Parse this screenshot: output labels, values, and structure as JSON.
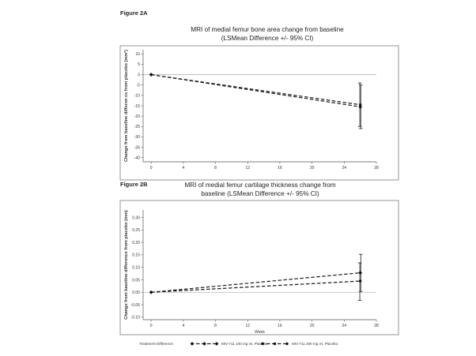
{
  "figure_a": {
    "label": "Figure 2A"
  },
  "figure_b": {
    "label": "Figure 2B"
  },
  "legend": {
    "title": "Treatment Difference",
    "items": [
      {
        "label": "MIV-711 100 mg vs. Placebo",
        "marker": "diamond"
      },
      {
        "label": "MIV-711 200 mg vs. Placebo",
        "marker": "circle"
      }
    ]
  },
  "chart_data": [
    {
      "type": "line",
      "title_lines": [
        "MRI of medial femur bone area change from baseline",
        "(LSMean Difference +/- 95% CI)"
      ],
      "xlabel": "",
      "ylabel": "Change from baseline differen ce from placebo (mm²)",
      "xlim": [
        -1,
        28
      ],
      "ylim": [
        -42,
        12
      ],
      "xticks": [
        0,
        4,
        8,
        12,
        16,
        20,
        24,
        28
      ],
      "yticks": [
        10,
        5,
        0,
        -5,
        -10,
        -15,
        -20,
        -25,
        -30,
        -35,
        -40
      ],
      "ytick_labels": [
        "10",
        "5",
        "0",
        "-5",
        "-10",
        "-15",
        "-20",
        "-25",
        "-30",
        "-35",
        "-40"
      ],
      "reference_line": 0,
      "series": [
        {
          "name": "MIV-711 100 mg vs. Placebo",
          "marker": "diamond",
          "x": [
            0,
            26
          ],
          "y": [
            0,
            -15.5
          ],
          "ci": [
            [
              0,
              0
            ],
            [
              -26,
              -5
            ]
          ]
        },
        {
          "name": "MIV-711 200 mg vs. Placebo",
          "marker": "circle",
          "x": [
            0,
            26
          ],
          "y": [
            0,
            -14.5
          ],
          "ci": [
            [
              0,
              0
            ],
            [
              -25,
              -4
            ]
          ]
        }
      ]
    },
    {
      "type": "line",
      "title_lines": [
        "MRI of medial femur cartilage thickness change from",
        "baseline (LSMean Difference +/- 95% CI)"
      ],
      "xlabel": "Week",
      "ylabel": "Change from baseline difference from placebo (mm)",
      "xlim": [
        -1,
        28
      ],
      "ylim": [
        -0.11,
        0.33
      ],
      "xticks": [
        0,
        4,
        8,
        12,
        16,
        20,
        24,
        28
      ],
      "yticks": [
        0.3,
        0.25,
        0.2,
        0.15,
        0.1,
        0.05,
        0.0,
        -0.05,
        -0.1
      ],
      "ytick_labels": [
        "0.30",
        "0.25",
        "0.20",
        "0.15",
        "0.10",
        "0.05",
        "0.00",
        "-0.05",
        "-0.10"
      ],
      "reference_line": 0,
      "series": [
        {
          "name": "MIV-711 100 mg vs. Placebo",
          "marker": "diamond",
          "x": [
            0,
            26
          ],
          "y": [
            0,
            0.078
          ],
          "ci": [
            [
              0,
              0
            ],
            [
              0.003,
              0.152
            ]
          ]
        },
        {
          "name": "MIV-711 200 mg vs. Placebo",
          "marker": "circle",
          "x": [
            0,
            26
          ],
          "y": [
            0,
            0.045
          ],
          "ci": [
            [
              0,
              0
            ],
            [
              -0.032,
              0.118
            ]
          ]
        }
      ]
    }
  ]
}
